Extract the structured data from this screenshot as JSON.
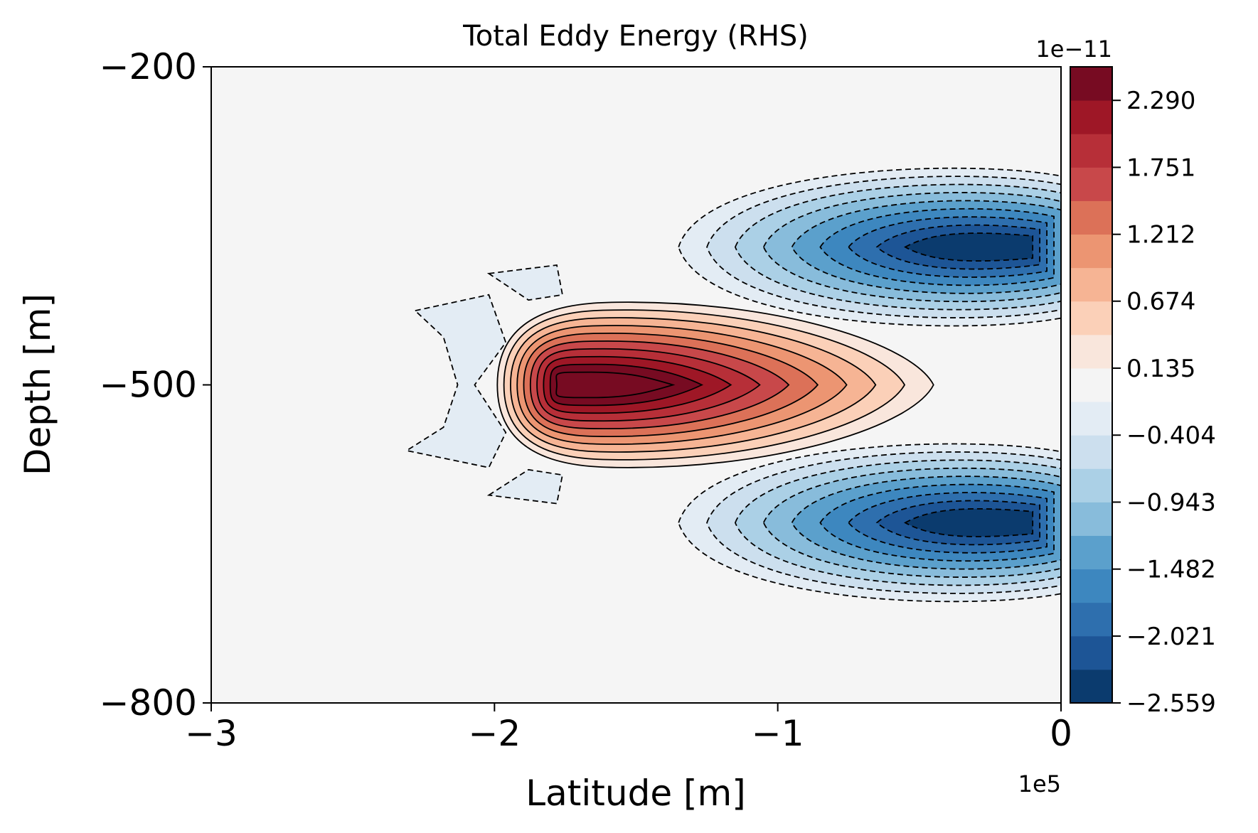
{
  "chart_data": {
    "type": "contour",
    "title": "Total Eddy Energy (RHS)",
    "xlabel": "Latitude [m]",
    "ylabel": "Depth [m]",
    "x_offset_text": "1e5",
    "xlim": [
      -3,
      0
    ],
    "ylim": [
      -800,
      -200
    ],
    "xticks": [
      {
        "value": -3,
        "label": "−3"
      },
      {
        "value": -2,
        "label": "−2"
      },
      {
        "value": -1,
        "label": "−1"
      },
      {
        "value": 0,
        "label": "0"
      }
    ],
    "yticks": [
      {
        "value": -200,
        "label": "−200"
      },
      {
        "value": -500,
        "label": "−500"
      },
      {
        "value": -800,
        "label": "−800"
      }
    ],
    "colorbar": {
      "exponent_text": "1e−11",
      "cmap": "RdBu_r",
      "range": [
        -2.559,
        2.56
      ],
      "tick_values": [
        2.29,
        1.751,
        1.212,
        0.674,
        0.135,
        -0.404,
        -0.943,
        -1.482,
        -2.021,
        -2.559
      ],
      "tick_labels": [
        "2.290",
        "1.751",
        "1.212",
        "0.674",
        "0.135",
        "−0.404",
        "−0.943",
        "−1.482",
        "−2.021",
        "−2.559"
      ],
      "colors": [
        "#0b3b6e",
        "#1d5596",
        "#2e6fae",
        "#3d87bf",
        "#5ba0cc",
        "#88bcdb",
        "#abd0e6",
        "#ccdfee",
        "#e3ecf4",
        "#f4f4f4",
        "#f9e6dc",
        "#fbd0b8",
        "#f6b494",
        "#ec9572",
        "#dc7158",
        "#c8484a",
        "#b72f38",
        "#9e1726",
        "#770b22"
      ]
    },
    "features": [
      {
        "name": "positive maximum",
        "x": -1.75,
        "y": -500,
        "value": 2.56
      },
      {
        "name": "upper negative minimum",
        "x": -0.45,
        "y": -370,
        "value": -2.559
      },
      {
        "name": "lower negative minimum",
        "x": -0.45,
        "y": -620,
        "value": -2.559
      }
    ]
  }
}
